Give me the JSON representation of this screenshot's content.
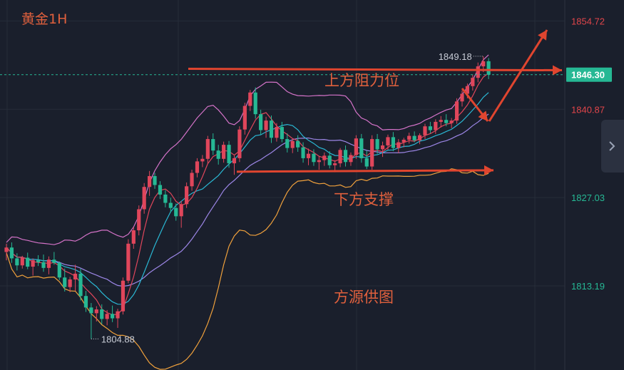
{
  "chart_data": {
    "type": "candlestick",
    "title": "黄金1H",
    "ylim": [
      1800,
      1858
    ],
    "y_ticks": [
      {
        "value": 1854.72,
        "label": "1854.72",
        "color": "#e0454a"
      },
      {
        "value": 1840.87,
        "label": "1840.87",
        "color": "#e0454a"
      },
      {
        "value": 1827.03,
        "label": "1827.03",
        "color": "#26b894"
      },
      {
        "value": 1813.19,
        "label": "1813.19",
        "color": "#26b894"
      }
    ],
    "current_price": {
      "value": 1846.3,
      "label": "1846.30"
    },
    "high_marker": {
      "value": 1849.18,
      "label": "1849.18"
    },
    "low_marker": {
      "value": 1804.88,
      "label": "1804.88"
    },
    "annotations": {
      "resistance": "上方阻力位",
      "support": "下方支撑",
      "source": "方源供图"
    },
    "resistance_level": 1847.1,
    "support_level": 1831.2,
    "candles": [
      [
        1818.5,
        1819.8,
        1817.2,
        1819.2
      ],
      [
        1819.2,
        1820.0,
        1816.8,
        1817.5
      ],
      [
        1817.5,
        1818.3,
        1815.6,
        1816.4
      ],
      [
        1816.4,
        1817.9,
        1815.9,
        1817.6
      ],
      [
        1817.6,
        1818.4,
        1815.8,
        1816.2
      ],
      [
        1816.2,
        1817.5,
        1814.8,
        1817.2
      ],
      [
        1817.2,
        1818.0,
        1816.3,
        1816.9
      ],
      [
        1816.9,
        1818.1,
        1815.4,
        1816.0
      ],
      [
        1816.0,
        1817.8,
        1815.0,
        1817.3
      ],
      [
        1817.3,
        1818.5,
        1816.5,
        1816.8
      ],
      [
        1816.8,
        1817.0,
        1814.1,
        1814.5
      ],
      [
        1814.5,
        1815.9,
        1812.3,
        1813.0
      ],
      [
        1813.0,
        1814.6,
        1812.2,
        1814.2
      ],
      [
        1814.2,
        1816.5,
        1812.4,
        1815.1
      ],
      [
        1815.1,
        1815.9,
        1810.9,
        1811.6
      ],
      [
        1811.6,
        1812.4,
        1809.1,
        1809.8
      ],
      [
        1809.8,
        1810.5,
        1804.88,
        1808.9
      ],
      [
        1808.9,
        1810.0,
        1807.6,
        1809.5
      ],
      [
        1809.5,
        1810.3,
        1807.2,
        1808.0
      ],
      [
        1808.0,
        1809.4,
        1807.0,
        1808.8
      ],
      [
        1808.8,
        1810.1,
        1807.5,
        1808.1
      ],
      [
        1808.1,
        1809.6,
        1806.6,
        1809.2
      ],
      [
        1809.2,
        1814.5,
        1808.7,
        1814.0
      ],
      [
        1814.0,
        1820.5,
        1813.6,
        1819.8
      ],
      [
        1819.8,
        1822.4,
        1819.0,
        1821.9
      ],
      [
        1821.9,
        1825.8,
        1821.1,
        1825.2
      ],
      [
        1825.2,
        1829.3,
        1824.5,
        1828.7
      ],
      [
        1828.7,
        1831.2,
        1827.3,
        1830.4
      ],
      [
        1830.4,
        1830.9,
        1828.4,
        1829.0
      ],
      [
        1829.0,
        1829.6,
        1826.8,
        1827.5
      ],
      [
        1827.5,
        1828.2,
        1825.5,
        1826.2
      ],
      [
        1826.2,
        1827.0,
        1824.7,
        1825.4
      ],
      [
        1825.4,
        1826.1,
        1823.4,
        1824.1
      ],
      [
        1824.1,
        1826.5,
        1822.3,
        1826.0
      ],
      [
        1826.0,
        1829.4,
        1825.4,
        1828.8
      ],
      [
        1828.8,
        1831.4,
        1828.1,
        1830.9
      ],
      [
        1830.9,
        1833.2,
        1830.2,
        1832.7
      ],
      [
        1832.7,
        1833.7,
        1831.8,
        1833.1
      ],
      [
        1833.1,
        1836.7,
        1832.4,
        1836.2
      ],
      [
        1836.2,
        1837.1,
        1833.7,
        1834.4
      ],
      [
        1834.4,
        1835.3,
        1832.2,
        1833.1
      ],
      [
        1833.1,
        1835.8,
        1832.5,
        1835.3
      ],
      [
        1835.3,
        1835.9,
        1831.7,
        1832.4
      ],
      [
        1832.4,
        1833.6,
        1830.6,
        1833.2
      ],
      [
        1833.2,
        1838.2,
        1832.6,
        1837.7
      ],
      [
        1837.7,
        1841.9,
        1836.9,
        1841.4
      ],
      [
        1841.4,
        1843.9,
        1840.6,
        1843.5
      ],
      [
        1843.5,
        1844.3,
        1839.4,
        1840.1
      ],
      [
        1840.1,
        1840.8,
        1836.9,
        1837.6
      ],
      [
        1837.6,
        1839.7,
        1836.4,
        1839.1
      ],
      [
        1839.1,
        1839.9,
        1835.6,
        1836.4
      ],
      [
        1836.4,
        1838.7,
        1835.8,
        1838.1
      ],
      [
        1838.1,
        1838.9,
        1835.7,
        1836.2
      ],
      [
        1836.2,
        1837.1,
        1834.1,
        1834.8
      ],
      [
        1834.8,
        1836.2,
        1834.0,
        1835.9
      ],
      [
        1835.9,
        1836.8,
        1834.2,
        1834.9
      ],
      [
        1834.9,
        1835.7,
        1832.5,
        1833.2
      ],
      [
        1833.2,
        1834.7,
        1832.1,
        1833.9
      ],
      [
        1833.9,
        1834.6,
        1832.0,
        1832.6
      ],
      [
        1832.6,
        1833.5,
        1831.4,
        1832.9
      ],
      [
        1832.9,
        1834.1,
        1832.0,
        1833.6
      ],
      [
        1833.6,
        1834.3,
        1831.6,
        1832.1
      ],
      [
        1832.1,
        1832.9,
        1831.0,
        1832.4
      ],
      [
        1832.4,
        1834.8,
        1831.8,
        1834.5
      ],
      [
        1834.5,
        1835.2,
        1831.9,
        1832.6
      ],
      [
        1832.6,
        1834.1,
        1832.0,
        1833.7
      ],
      [
        1833.7,
        1836.8,
        1833.1,
        1836.3
      ],
      [
        1836.3,
        1837.0,
        1832.5,
        1833.2
      ],
      [
        1833.2,
        1834.4,
        1831.5,
        1831.9
      ],
      [
        1831.9,
        1836.8,
        1831.4,
        1836.2
      ],
      [
        1836.2,
        1837.0,
        1833.9,
        1834.6
      ],
      [
        1834.6,
        1835.8,
        1833.4,
        1835.2
      ],
      [
        1835.2,
        1836.9,
        1834.5,
        1836.5
      ],
      [
        1836.5,
        1837.3,
        1834.3,
        1834.8
      ],
      [
        1834.8,
        1836.2,
        1834.0,
        1835.7
      ],
      [
        1835.7,
        1836.4,
        1834.9,
        1836.1
      ],
      [
        1836.1,
        1837.2,
        1835.5,
        1836.7
      ],
      [
        1836.7,
        1837.4,
        1835.7,
        1836.0
      ],
      [
        1836.0,
        1837.1,
        1835.4,
        1836.8
      ],
      [
        1836.8,
        1838.6,
        1836.2,
        1838.2
      ],
      [
        1838.2,
        1838.9,
        1837.1,
        1837.6
      ],
      [
        1837.6,
        1839.3,
        1837.0,
        1838.9
      ],
      [
        1838.9,
        1839.8,
        1838.0,
        1839.2
      ],
      [
        1839.2,
        1840.1,
        1838.2,
        1838.7
      ],
      [
        1838.7,
        1839.5,
        1837.9,
        1839.1
      ],
      [
        1839.1,
        1842.6,
        1838.6,
        1842.1
      ],
      [
        1842.1,
        1843.8,
        1841.3,
        1843.3
      ],
      [
        1843.3,
        1844.9,
        1842.6,
        1844.5
      ],
      [
        1844.5,
        1846.3,
        1843.8,
        1845.8
      ],
      [
        1845.8,
        1848.2,
        1845.1,
        1847.6
      ],
      [
        1847.6,
        1849.18,
        1846.7,
        1848.4
      ],
      [
        1848.4,
        1848.9,
        1845.6,
        1846.3
      ]
    ]
  }
}
